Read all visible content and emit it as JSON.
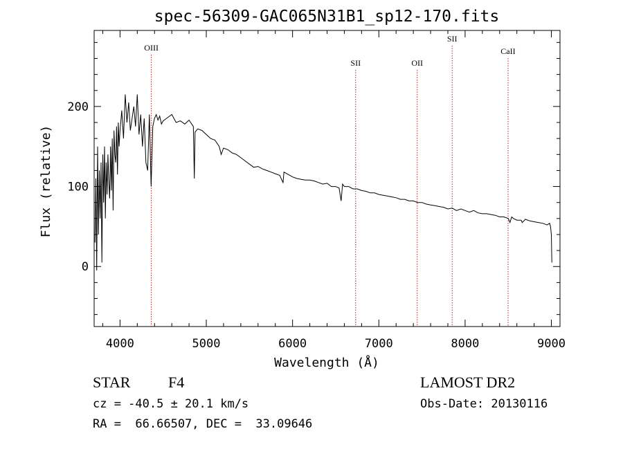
{
  "chart_data": {
    "type": "line",
    "title": "spec-56309-GAC065N31B1_sp12-170.fits",
    "xlabel": "Wavelength (Å)",
    "ylabel": "Flux (relative)",
    "xlim": [
      3700,
      9100
    ],
    "ylim": [
      -75,
      295
    ],
    "x_ticks": [
      4000,
      5000,
      6000,
      7000,
      8000,
      9000
    ],
    "y_ticks": [
      0,
      100,
      200
    ],
    "grid": false,
    "series": [
      {
        "x": [
          3710,
          3720,
          3730,
          3740,
          3750,
          3760,
          3770,
          3780,
          3790,
          3800,
          3810,
          3820,
          3830,
          3840,
          3850,
          3860,
          3870,
          3880,
          3890,
          3900,
          3910,
          3920,
          3930,
          3940,
          3950,
          3960,
          3970,
          3980,
          3990,
          4000,
          4020,
          4040,
          4060,
          4080,
          4100,
          4120,
          4140,
          4160,
          4180,
          4200,
          4220,
          4240,
          4260,
          4280,
          4300,
          4320,
          4340,
          4360,
          4380,
          4400,
          4420,
          4440,
          4460,
          4480,
          4500,
          4550,
          4600,
          4650,
          4700,
          4750,
          4800,
          4850,
          4861,
          4870,
          4900,
          4950,
          5000,
          5050,
          5100,
          5150,
          5172,
          5200,
          5250,
          5300,
          5350,
          5400,
          5450,
          5500,
          5550,
          5600,
          5650,
          5700,
          5750,
          5800,
          5850,
          5890,
          5900,
          5950,
          6000,
          6050,
          6100,
          6150,
          6200,
          6250,
          6300,
          6350,
          6400,
          6450,
          6500,
          6540,
          6563,
          6580,
          6600,
          6650,
          6700,
          6750,
          6800,
          6850,
          6900,
          6950,
          7000,
          7050,
          7100,
          7150,
          7200,
          7250,
          7300,
          7350,
          7400,
          7450,
          7500,
          7550,
          7600,
          7650,
          7700,
          7750,
          7800,
          7850,
          7900,
          7950,
          8000,
          8050,
          8100,
          8150,
          8200,
          8250,
          8300,
          8350,
          8400,
          8450,
          8500,
          8520,
          8540,
          8560,
          8600,
          8650,
          8662,
          8700,
          8750,
          8800,
          8850,
          8900,
          8950,
          8980,
          8990,
          9000,
          9005
        ],
        "y": [
          30,
          110,
          -5,
          150,
          40,
          120,
          60,
          130,
          5,
          140,
          80,
          150,
          60,
          130,
          90,
          140,
          105,
          85,
          150,
          95,
          160,
          70,
          170,
          140,
          130,
          175,
          115,
          180,
          150,
          170,
          195,
          160,
          215,
          180,
          205,
          170,
          185,
          200,
          175,
          215,
          165,
          190,
          150,
          185,
          130,
          120,
          190,
          100,
          175,
          185,
          190,
          183,
          188,
          178,
          182,
          186,
          190,
          180,
          182,
          178,
          183,
          175,
          110,
          168,
          172,
          170,
          165,
          160,
          158,
          150,
          140,
          148,
          146,
          142,
          140,
          136,
          132,
          128,
          124,
          125,
          122,
          120,
          118,
          116,
          114,
          105,
          118,
          115,
          112,
          110,
          109,
          108,
          108,
          107,
          105,
          103,
          104,
          100,
          100,
          98,
          82,
          103,
          100,
          100,
          97,
          97,
          95,
          94,
          92,
          92,
          90,
          89,
          88,
          87,
          86,
          84,
          84,
          82,
          82,
          80,
          80,
          78,
          77,
          76,
          75,
          74,
          72,
          73,
          70,
          72,
          70,
          68,
          70,
          67,
          66,
          66,
          65,
          64,
          62,
          62,
          60,
          55,
          62,
          60,
          58,
          58,
          55,
          59,
          57,
          56,
          55,
          54,
          52,
          54,
          50,
          40,
          5
        ]
      }
    ],
    "line_markers": [
      {
        "label": "OIII",
        "x": 4363
      },
      {
        "label": "SII",
        "x": 6731
      },
      {
        "label": "OII",
        "x": 7445
      },
      {
        "label": "SII",
        "x": 7850
      },
      {
        "label": "CaII",
        "x": 8498
      }
    ],
    "info": {
      "object_class": "STAR",
      "subclass": "F4",
      "redshift": "cz = -40.5 ± 20.1 km/s",
      "coords": "RA =  66.66507, DEC =  33.09646",
      "survey": "LAMOST DR2",
      "obs_date": "Obs-Date: 20130116"
    },
    "colors": {
      "spectrum": "#000000",
      "markers": "#b22222",
      "axes": "#000000"
    }
  }
}
